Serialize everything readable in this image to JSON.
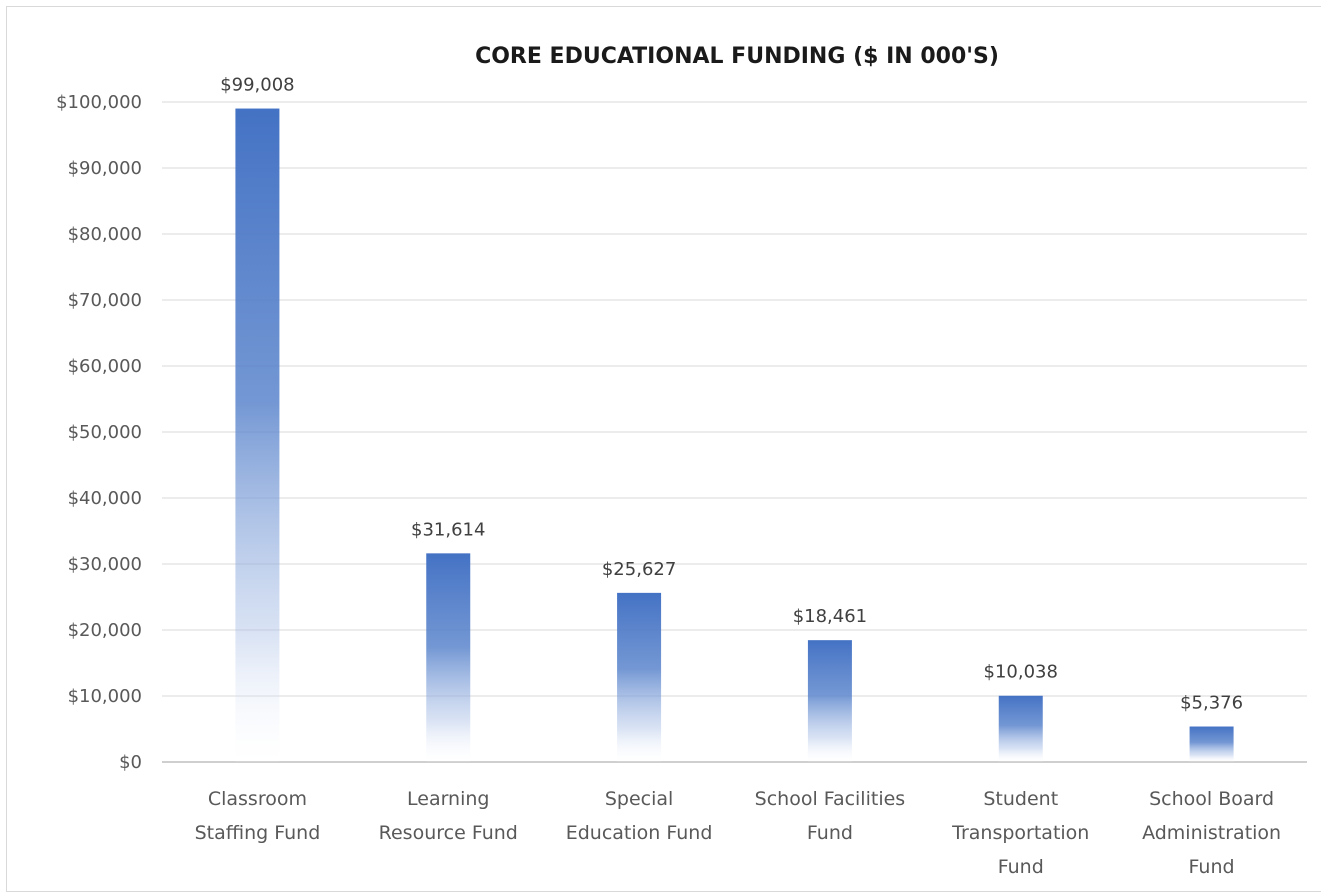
{
  "chart_data": {
    "type": "bar",
    "title": "CORE EDUCATIONAL FUNDING ($ IN 000'S)",
    "categories": [
      [
        "Classroom",
        "Staffing Fund"
      ],
      [
        "Learning",
        "Resource Fund"
      ],
      [
        "Special",
        "Education Fund"
      ],
      [
        "School Facilities",
        "Fund"
      ],
      [
        "Student",
        "Transportation",
        "Fund"
      ],
      [
        "School Board",
        "Administration",
        "Fund"
      ]
    ],
    "values": [
      99008,
      31614,
      25627,
      18461,
      10038,
      5376
    ],
    "data_labels": [
      "$99,008",
      "$31,614",
      "$25,627",
      "$18,461",
      "$10,038",
      "$5,376"
    ],
    "ylim": [
      0,
      100000
    ],
    "yticks": [
      0,
      10000,
      20000,
      30000,
      40000,
      50000,
      60000,
      70000,
      80000,
      90000,
      100000
    ],
    "ytick_labels": [
      "$0",
      "$10,000",
      "$20,000",
      "$30,000",
      "$40,000",
      "$50,000",
      "$60,000",
      "$70,000",
      "$80,000",
      "$90,000",
      "$100,000"
    ],
    "grid": true,
    "legend": "none",
    "bar_color": "#4472c4",
    "bar_fill": "gradient-top-to-transparent"
  }
}
